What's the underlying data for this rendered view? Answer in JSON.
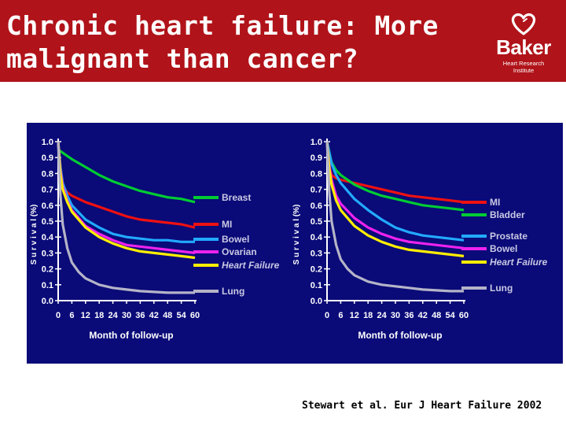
{
  "header": {
    "title_line1": "Chronic heart failure: More",
    "title_line2": "malignant than cancer?",
    "logo_name": "Baker",
    "logo_subtitle": "Heart Research Institute",
    "logo_icon": "heart-icon"
  },
  "citation": "Stewart et al. Eur J Heart Failure 2002",
  "colors": {
    "header_bg": "#b01319",
    "panel_bg": "#0a0a78",
    "axis_text": "#ffffff",
    "legend_text": "#c8c8e4"
  },
  "chart_data": [
    {
      "type": "line",
      "xlabel": "Month of follow-up",
      "ylabel": "S u r v i v a l  (%)",
      "x_ticks": [
        "0",
        "6",
        "12",
        "18",
        "24",
        "30",
        "36",
        "42",
        "48",
        "54",
        "60"
      ],
      "y_ticks": [
        "1.0",
        "0.9",
        "0.8",
        "0.7",
        "0.6",
        "0.5",
        "0.4",
        "0.3",
        "0.2",
        "0.1",
        "0.0"
      ],
      "xlim": [
        0,
        60
      ],
      "ylim": [
        0,
        1.0
      ],
      "series": [
        {
          "name": "Breast",
          "color": "#00cc33",
          "x": [
            0,
            3,
            6,
            12,
            18,
            24,
            30,
            36,
            42,
            48,
            54,
            60
          ],
          "y": [
            0.95,
            0.92,
            0.89,
            0.84,
            0.79,
            0.75,
            0.72,
            0.69,
            0.67,
            0.65,
            0.64,
            0.62
          ]
        },
        {
          "name": "MI",
          "color": "#ee1111",
          "x": [
            0,
            1,
            2,
            4,
            6,
            12,
            18,
            24,
            30,
            36,
            42,
            48,
            54,
            60
          ],
          "y": [
            1.0,
            0.8,
            0.72,
            0.68,
            0.66,
            0.62,
            0.59,
            0.56,
            0.53,
            0.51,
            0.5,
            0.49,
            0.48,
            0.46
          ]
        },
        {
          "name": "Bowel",
          "color": "#22aaff",
          "x": [
            0,
            1,
            2,
            4,
            6,
            12,
            18,
            24,
            30,
            36,
            42,
            48,
            54,
            60
          ],
          "y": [
            1.0,
            0.84,
            0.74,
            0.66,
            0.6,
            0.51,
            0.46,
            0.42,
            0.4,
            0.39,
            0.38,
            0.38,
            0.37,
            0.37
          ]
        },
        {
          "name": "Ovarian",
          "color": "#ee22ee",
          "x": [
            0,
            1,
            2,
            4,
            6,
            12,
            18,
            24,
            30,
            36,
            42,
            48,
            54,
            60
          ],
          "y": [
            1.0,
            0.82,
            0.72,
            0.63,
            0.57,
            0.47,
            0.42,
            0.38,
            0.35,
            0.34,
            0.33,
            0.32,
            0.31,
            0.3
          ]
        },
        {
          "name": "Heart Failure",
          "color": "#ffee00",
          "x": [
            0,
            1,
            2,
            4,
            6,
            12,
            18,
            24,
            30,
            36,
            42,
            48,
            54,
            60
          ],
          "y": [
            1.0,
            0.8,
            0.7,
            0.62,
            0.56,
            0.46,
            0.4,
            0.36,
            0.33,
            0.31,
            0.3,
            0.29,
            0.28,
            0.27
          ]
        },
        {
          "name": "Lung",
          "color": "#b4b4c8",
          "x": [
            0,
            1,
            2,
            4,
            6,
            9,
            12,
            18,
            24,
            30,
            36,
            42,
            48,
            54,
            60
          ],
          "y": [
            1.0,
            0.66,
            0.48,
            0.33,
            0.24,
            0.18,
            0.14,
            0.1,
            0.08,
            0.07,
            0.06,
            0.055,
            0.05,
            0.05,
            0.05
          ]
        }
      ]
    },
    {
      "type": "line",
      "xlabel": "Month of follow-up",
      "ylabel": "S u r v i v a l  (%)",
      "x_ticks": [
        "0",
        "6",
        "12",
        "18",
        "24",
        "30",
        "36",
        "42",
        "48",
        "54",
        "60"
      ],
      "y_ticks": [
        "1.0",
        "0.9",
        "0.8",
        "0.7",
        "0.6",
        "0.5",
        "0.4",
        "0.3",
        "0.2",
        "0.1",
        "0.0"
      ],
      "xlim": [
        0,
        60
      ],
      "ylim": [
        0,
        1.0
      ],
      "series": [
        {
          "name": "MI",
          "color": "#ee1111",
          "x": [
            0,
            1,
            2,
            4,
            6,
            12,
            18,
            24,
            30,
            36,
            42,
            48,
            54,
            60
          ],
          "y": [
            1.0,
            0.84,
            0.79,
            0.77,
            0.76,
            0.74,
            0.72,
            0.7,
            0.68,
            0.66,
            0.65,
            0.64,
            0.63,
            0.62
          ]
        },
        {
          "name": "Bladder",
          "color": "#00cc33",
          "x": [
            0,
            2,
            4,
            6,
            12,
            18,
            24,
            30,
            36,
            42,
            48,
            54,
            60
          ],
          "y": [
            1.0,
            0.87,
            0.82,
            0.79,
            0.73,
            0.69,
            0.66,
            0.64,
            0.62,
            0.6,
            0.59,
            0.58,
            0.57
          ]
        },
        {
          "name": "Prostate",
          "color": "#22aaff",
          "x": [
            0,
            2,
            4,
            6,
            12,
            18,
            24,
            30,
            36,
            42,
            48,
            54,
            60
          ],
          "y": [
            1.0,
            0.86,
            0.79,
            0.74,
            0.64,
            0.57,
            0.51,
            0.46,
            0.43,
            0.41,
            0.4,
            0.39,
            0.38
          ]
        },
        {
          "name": "Bowel",
          "color": "#ee22ee",
          "x": [
            0,
            1,
            2,
            4,
            6,
            12,
            18,
            24,
            30,
            36,
            42,
            48,
            54,
            60
          ],
          "y": [
            1.0,
            0.85,
            0.76,
            0.66,
            0.61,
            0.52,
            0.46,
            0.42,
            0.39,
            0.37,
            0.36,
            0.35,
            0.34,
            0.33
          ]
        },
        {
          "name": "Heart Failure",
          "color": "#ffee00",
          "x": [
            0,
            1,
            2,
            4,
            6,
            12,
            18,
            24,
            30,
            36,
            42,
            48,
            54,
            60
          ],
          "y": [
            1.0,
            0.83,
            0.73,
            0.63,
            0.57,
            0.47,
            0.41,
            0.37,
            0.34,
            0.32,
            0.31,
            0.3,
            0.29,
            0.28
          ]
        },
        {
          "name": "Lung",
          "color": "#b4b4c8",
          "x": [
            0,
            1,
            2,
            4,
            6,
            9,
            12,
            18,
            24,
            30,
            36,
            42,
            48,
            54,
            60
          ],
          "y": [
            1.0,
            0.68,
            0.5,
            0.35,
            0.26,
            0.2,
            0.16,
            0.12,
            0.1,
            0.09,
            0.08,
            0.07,
            0.065,
            0.06,
            0.06
          ]
        }
      ]
    }
  ]
}
